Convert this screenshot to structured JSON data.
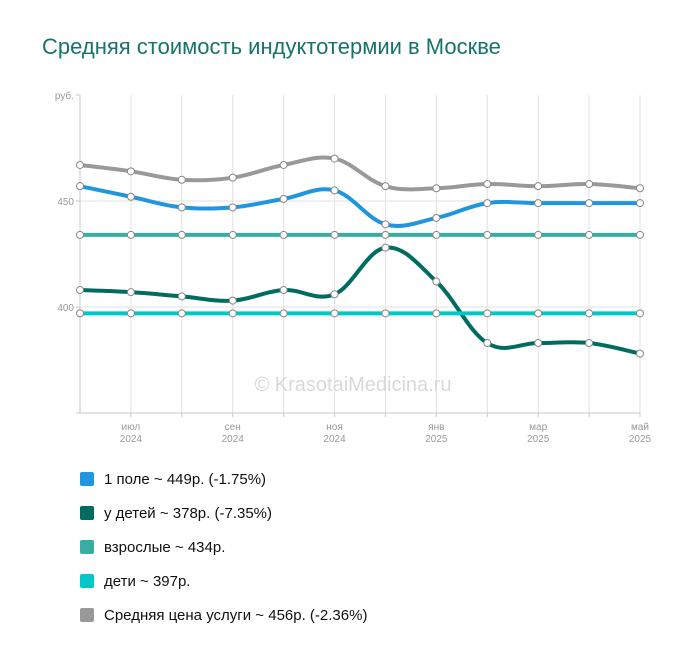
{
  "title": "Средняя стоимость индуктотермии в Москве",
  "watermark": "© KrasotaiMedicina.ru",
  "colors": {
    "one_field": "#2196de",
    "children_var": "#006b60",
    "adults": "#38aea2",
    "children": "#00c8c8",
    "average": "#999999"
  },
  "chart_data": {
    "type": "line",
    "ylabel": "руб.",
    "ylim": [
      350,
      500
    ],
    "yticks": [
      400,
      450
    ],
    "x_labels": [
      {
        "i": 1,
        "month": "июл",
        "year": "2024"
      },
      {
        "i": 3,
        "month": "сен",
        "year": "2024"
      },
      {
        "i": 5,
        "month": "ноя",
        "year": "2024"
      },
      {
        "i": 7,
        "month": "янв",
        "year": "2025"
      },
      {
        "i": 9,
        "month": "мар",
        "year": "2025"
      },
      {
        "i": 11,
        "month": "май",
        "year": "2025"
      }
    ],
    "series": [
      {
        "key": "average",
        "name": "Средняя цена услуги",
        "legend": "Средняя цена услуги ~ 456р. (-2.36%)",
        "values": [
          467,
          464,
          460,
          461,
          467,
          470,
          457,
          456,
          458,
          457,
          458,
          456
        ]
      },
      {
        "key": "one_field",
        "name": "1 поле",
        "legend": "1 поле ~ 449р. (-1.75%)",
        "values": [
          457,
          452,
          447,
          447,
          451,
          455,
          439,
          442,
          449,
          449,
          449,
          449
        ]
      },
      {
        "key": "adults",
        "name": "взрослые",
        "legend": "взрослые ~ 434р.",
        "values": [
          434,
          434,
          434,
          434,
          434,
          434,
          434,
          434,
          434,
          434,
          434,
          434
        ]
      },
      {
        "key": "children_var",
        "name": "у детей",
        "legend": "у детей ~ 378р. (-7.35%)",
        "values": [
          408,
          407,
          405,
          403,
          408,
          406,
          428,
          412,
          383,
          383,
          383,
          378
        ]
      },
      {
        "key": "children",
        "name": "дети",
        "legend": "дети ~ 397р.",
        "values": [
          397,
          397,
          397,
          397,
          397,
          397,
          397,
          397,
          397,
          397,
          397,
          397
        ]
      }
    ],
    "legend_order": [
      "one_field",
      "children_var",
      "adults",
      "children",
      "average"
    ]
  }
}
